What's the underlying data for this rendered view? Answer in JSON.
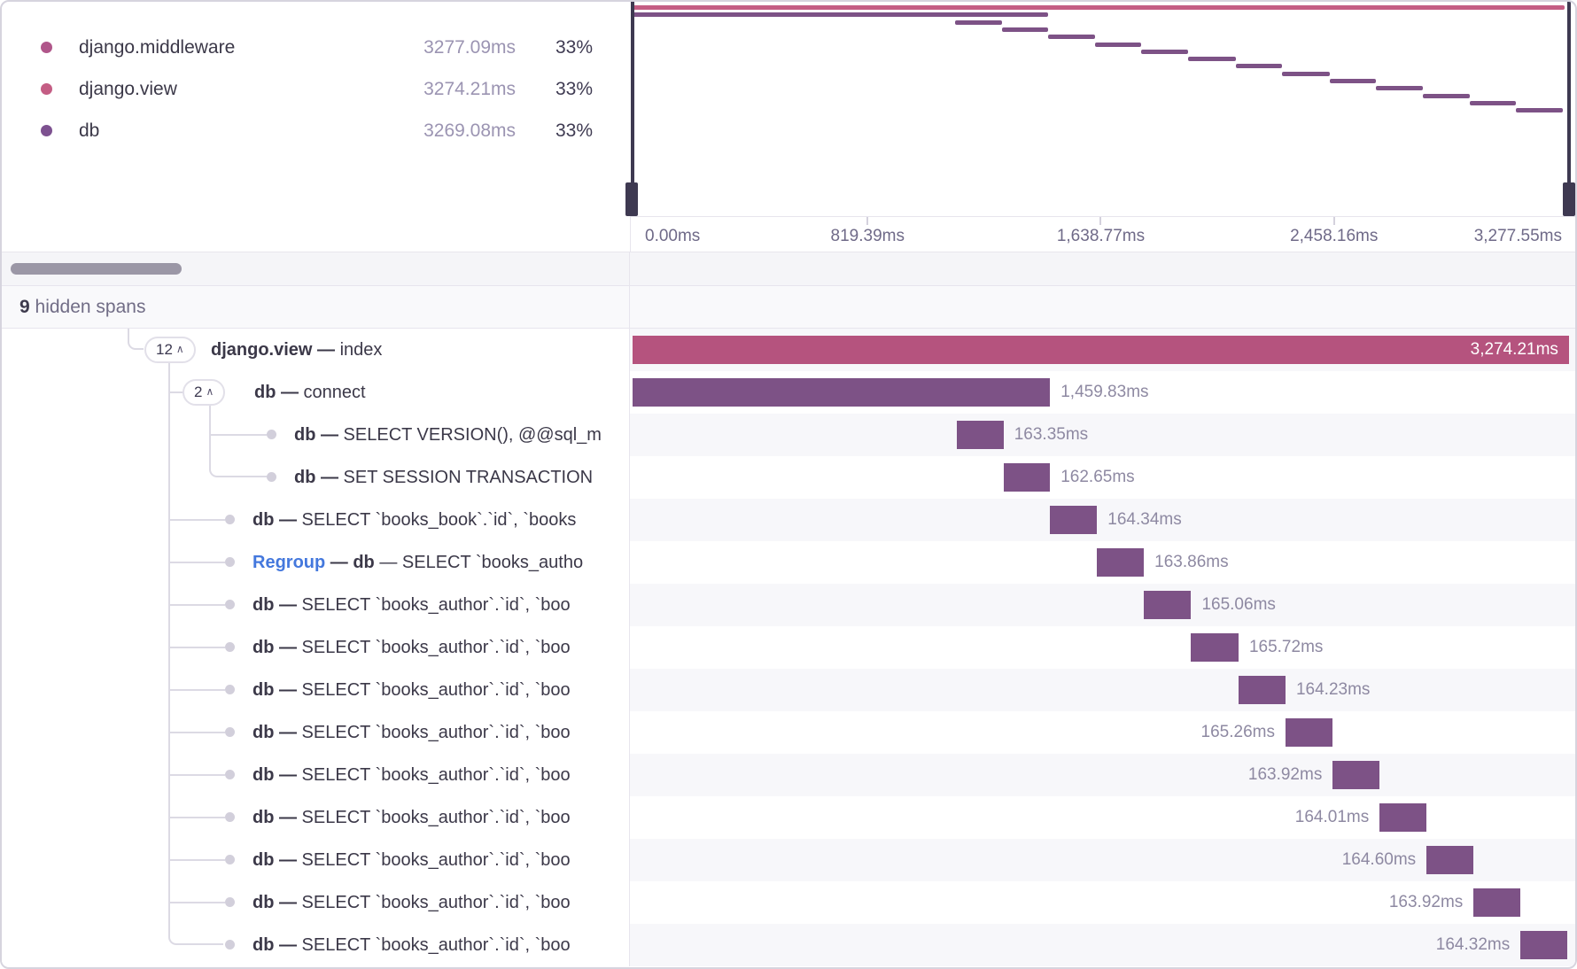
{
  "legend": {
    "items": [
      {
        "name": "django.middleware",
        "time": "3277.09ms",
        "pct": "33%",
        "color": "#b0568a"
      },
      {
        "name": "django.view",
        "time": "3274.21ms",
        "pct": "33%",
        "color": "#c45d84"
      },
      {
        "name": "db",
        "time": "3269.08ms",
        "pct": "33%",
        "color": "#7d5190"
      }
    ]
  },
  "timeline": {
    "total_ms": 3277.55,
    "axis_ticks": [
      {
        "label": "0.00ms",
        "ms": 0
      },
      {
        "label": "819.39ms",
        "ms": 819.39
      },
      {
        "label": "1,638.77ms",
        "ms": 1638.77
      },
      {
        "label": "2,458.16ms",
        "ms": 2458.16
      },
      {
        "label": "3,277.55ms",
        "ms": 3277.55
      }
    ]
  },
  "hidden_row": {
    "count": "9",
    "label": " hidden spans"
  },
  "colors": {
    "view_bar": "#b5537e",
    "db_bar": "#7d5286",
    "mini_view": "#c45d84",
    "mini_db": "#7d5286"
  },
  "spans": [
    {
      "badge": "12",
      "parts": [
        {
          "t": "django.view — ",
          "b": 1
        },
        {
          "t": "index"
        }
      ],
      "start": 0,
      "dur": 3274.21,
      "time": "3,274.21ms",
      "color": "pink",
      "label_side": "inside"
    },
    {
      "badge": "2",
      "parts": [
        {
          "t": "db — ",
          "b": 1
        },
        {
          "t": "connect"
        }
      ],
      "start": 0,
      "dur": 1459.83,
      "time": "1,459.83ms",
      "color": "purple",
      "label_side": "right"
    },
    {
      "parts": [
        {
          "t": "db — ",
          "b": 1
        },
        {
          "t": "SELECT VERSION(), @@sql_m"
        }
      ],
      "start": 1133.83,
      "dur": 163.35,
      "time": "163.35ms",
      "color": "purple",
      "label_side": "right"
    },
    {
      "parts": [
        {
          "t": "db — ",
          "b": 1
        },
        {
          "t": "SET SESSION TRANSACTION"
        }
      ],
      "start": 1297.18,
      "dur": 162.65,
      "time": "162.65ms",
      "color": "purple",
      "label_side": "right"
    },
    {
      "parts": [
        {
          "t": "db — ",
          "b": 1
        },
        {
          "t": "SELECT `books_book`.`id`, `books"
        }
      ],
      "start": 1459.83,
      "dur": 164.34,
      "time": "164.34ms",
      "color": "purple",
      "label_side": "right"
    },
    {
      "parts": [
        {
          "t": "Regroup",
          "link": 1
        },
        {
          "t": " — ",
          "b": 1
        },
        {
          "t": "db",
          "b": 1
        },
        {
          "t": " — SELECT `books_autho"
        }
      ],
      "start": 1624.17,
      "dur": 163.86,
      "time": "163.86ms",
      "color": "purple",
      "label_side": "right"
    },
    {
      "parts": [
        {
          "t": "db — ",
          "b": 1
        },
        {
          "t": "SELECT `books_author`.`id`, `boo"
        }
      ],
      "start": 1788.03,
      "dur": 165.06,
      "time": "165.06ms",
      "color": "purple",
      "label_side": "right"
    },
    {
      "parts": [
        {
          "t": "db — ",
          "b": 1
        },
        {
          "t": "SELECT `books_author`.`id`, `boo"
        }
      ],
      "start": 1953.09,
      "dur": 165.72,
      "time": "165.72ms",
      "color": "purple",
      "label_side": "right"
    },
    {
      "parts": [
        {
          "t": "db — ",
          "b": 1
        },
        {
          "t": "SELECT `books_author`.`id`, `boo"
        }
      ],
      "start": 2118.81,
      "dur": 164.23,
      "time": "164.23ms",
      "color": "purple",
      "label_side": "right"
    },
    {
      "parts": [
        {
          "t": "db — ",
          "b": 1
        },
        {
          "t": "SELECT `books_author`.`id`, `boo"
        }
      ],
      "start": 2283.04,
      "dur": 165.26,
      "time": "165.26ms",
      "color": "purple",
      "label_side": "left"
    },
    {
      "parts": [
        {
          "t": "db — ",
          "b": 1
        },
        {
          "t": "SELECT `books_author`.`id`, `boo"
        }
      ],
      "start": 2448.3,
      "dur": 163.92,
      "time": "163.92ms",
      "color": "purple",
      "label_side": "left"
    },
    {
      "parts": [
        {
          "t": "db — ",
          "b": 1
        },
        {
          "t": "SELECT `books_author`.`id`, `boo"
        }
      ],
      "start": 2612.22,
      "dur": 164.01,
      "time": "164.01ms",
      "color": "purple",
      "label_side": "left"
    },
    {
      "parts": [
        {
          "t": "db — ",
          "b": 1
        },
        {
          "t": "SELECT `books_author`.`id`, `boo"
        }
      ],
      "start": 2776.23,
      "dur": 164.6,
      "time": "164.60ms",
      "color": "purple",
      "label_side": "left"
    },
    {
      "parts": [
        {
          "t": "db — ",
          "b": 1
        },
        {
          "t": "SELECT `books_author`.`id`, `boo"
        }
      ],
      "start": 2940.83,
      "dur": 163.92,
      "time": "163.92ms",
      "color": "purple",
      "label_side": "left"
    },
    {
      "parts": [
        {
          "t": "db — ",
          "b": 1
        },
        {
          "t": "SELECT `books_author`.`id`, `boo"
        }
      ],
      "start": 3104.75,
      "dur": 164.32,
      "time": "164.32ms",
      "color": "purple",
      "label_side": "left"
    }
  ]
}
